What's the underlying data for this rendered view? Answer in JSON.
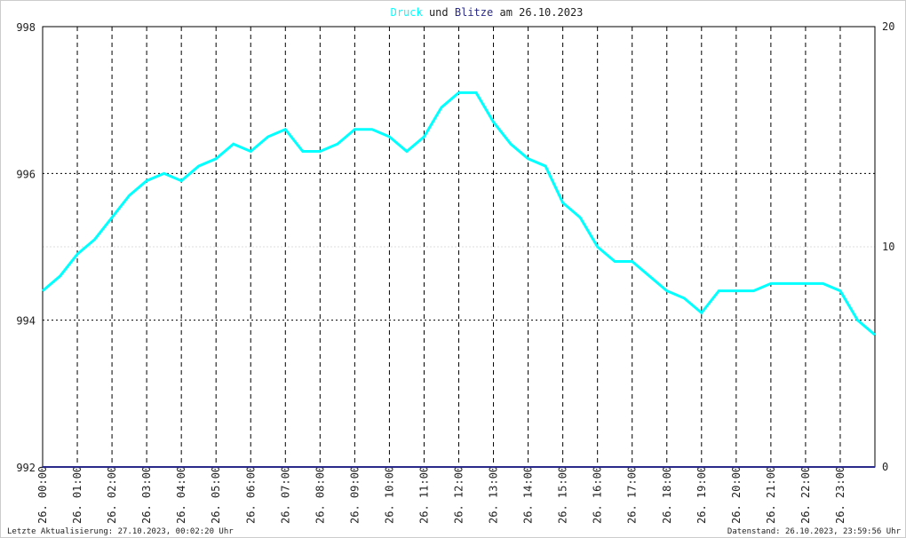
{
  "chart_data": {
    "type": "line",
    "title_connector": "und",
    "title_suffix": "am 26.10.2023",
    "footer_left": "Letzte Aktualisierung: 27.10.2023, 00:02:20 Uhr",
    "footer_right": "Datenstand: 26.10.2023, 23:59:56 Uhr",
    "x": [
      0,
      0.5,
      1,
      1.5,
      2,
      2.5,
      3,
      3.5,
      4,
      4.5,
      5,
      5.5,
      6,
      6.5,
      7,
      7.5,
      8,
      8.5,
      9,
      9.5,
      10,
      10.5,
      11,
      11.5,
      12,
      12.5,
      13,
      13.5,
      14,
      14.5,
      15,
      15.5,
      16,
      16.5,
      17,
      17.5,
      18,
      18.5,
      19,
      19.5,
      20,
      20.5,
      21,
      21.5,
      22,
      22.5,
      23,
      23.5,
      24
    ],
    "series": [
      {
        "name": "Druck",
        "color": "#00ffff",
        "axis": "y",
        "values": [
          994.4,
          994.6,
          994.9,
          995.1,
          995.4,
          995.7,
          995.9,
          996.0,
          995.9,
          996.1,
          996.2,
          996.4,
          996.3,
          996.5,
          996.6,
          996.3,
          996.3,
          996.4,
          996.6,
          996.6,
          996.5,
          996.3,
          996.5,
          996.9,
          997.1,
          997.1,
          996.7,
          996.4,
          996.2,
          996.1,
          995.6,
          995.4,
          995.0,
          994.8,
          994.8,
          994.6,
          994.4,
          994.3,
          994.1,
          994.4,
          994.4,
          994.4,
          994.5,
          994.5,
          994.5,
          994.5,
          994.4,
          994.0,
          993.8
        ]
      },
      {
        "name": "Blitze",
        "color": "#2a2a8a",
        "axis": "y2",
        "values": [
          0,
          0,
          0,
          0,
          0,
          0,
          0,
          0,
          0,
          0,
          0,
          0,
          0,
          0,
          0,
          0,
          0,
          0,
          0,
          0,
          0,
          0,
          0,
          0,
          0,
          0,
          0,
          0,
          0,
          0,
          0,
          0,
          0,
          0,
          0,
          0,
          0,
          0,
          0,
          0,
          0,
          0,
          0,
          0,
          0,
          0,
          0,
          0,
          0
        ]
      }
    ],
    "xlim": [
      0,
      24
    ],
    "xticks": [
      {
        "value": 0,
        "label": "26. 00:00"
      },
      {
        "value": 1,
        "label": "26. 01:00"
      },
      {
        "value": 2,
        "label": "26. 02:00"
      },
      {
        "value": 3,
        "label": "26. 03:00"
      },
      {
        "value": 4,
        "label": "26. 04:00"
      },
      {
        "value": 5,
        "label": "26. 05:00"
      },
      {
        "value": 6,
        "label": "26. 06:00"
      },
      {
        "value": 7,
        "label": "26. 07:00"
      },
      {
        "value": 8,
        "label": "26. 08:00"
      },
      {
        "value": 9,
        "label": "26. 09:00"
      },
      {
        "value": 10,
        "label": "26. 10:00"
      },
      {
        "value": 11,
        "label": "26. 11:00"
      },
      {
        "value": 12,
        "label": "26. 12:00"
      },
      {
        "value": 13,
        "label": "26. 13:00"
      },
      {
        "value": 14,
        "label": "26. 14:00"
      },
      {
        "value": 15,
        "label": "26. 15:00"
      },
      {
        "value": 16,
        "label": "26. 16:00"
      },
      {
        "value": 17,
        "label": "26. 17:00"
      },
      {
        "value": 18,
        "label": "26. 18:00"
      },
      {
        "value": 19,
        "label": "26. 19:00"
      },
      {
        "value": 20,
        "label": "26. 20:00"
      },
      {
        "value": 21,
        "label": "26. 21:00"
      },
      {
        "value": 22,
        "label": "26. 22:00"
      },
      {
        "value": 23,
        "label": "26. 23:00"
      }
    ],
    "ylim": [
      992,
      998
    ],
    "yticks": [
      992,
      994,
      996,
      998
    ],
    "y2lim": [
      0,
      20
    ],
    "y2ticks": [
      0,
      10,
      20
    ],
    "grid": true
  }
}
